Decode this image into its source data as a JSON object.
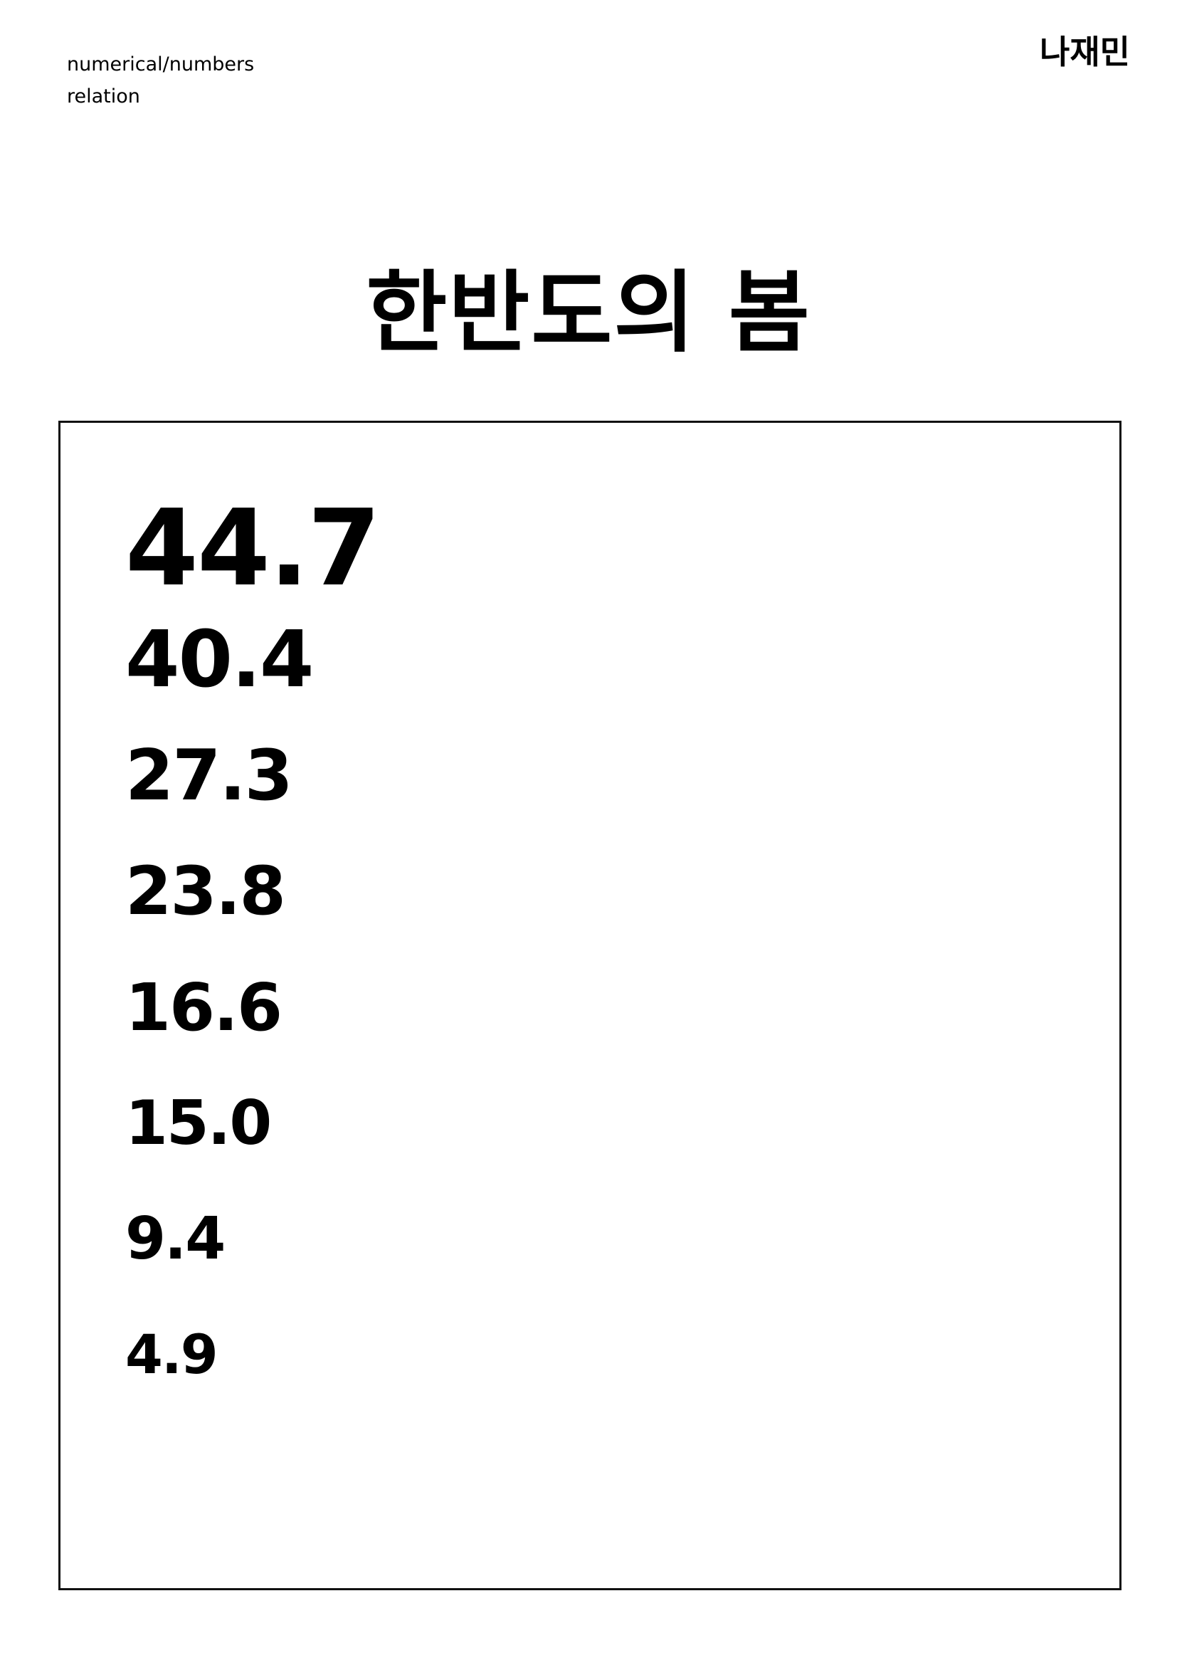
{
  "header": {
    "subtitle_line1": "numerical/numbers",
    "subtitle_line2": "relation",
    "author": "나재민"
  },
  "title": "한반도의 봄",
  "values": [
    "44.7",
    "40.4",
    "27.3",
    "23.8",
    "16.6",
    "15.0",
    "9.4",
    "4.9"
  ]
}
